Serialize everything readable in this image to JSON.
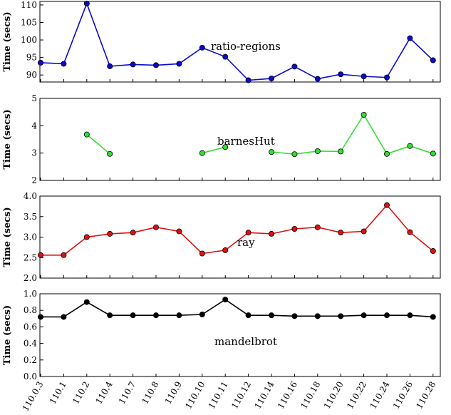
{
  "chart_data": {
    "type": "line",
    "shared_x_categories": [
      "110.0.3",
      "110.1",
      "110.2",
      "110.4",
      "110.7",
      "110.8",
      "110.9",
      "110.10",
      "110.11",
      "110.12",
      "110.14",
      "110.16",
      "110.18",
      "110.20",
      "110.22",
      "110.24",
      "110.26",
      "110.28"
    ],
    "panels": [
      {
        "annotation": "ratio-regions",
        "ylabel": "Time (secs)",
        "ylim": [
          88,
          111
        ],
        "yticks": [
          90,
          95,
          100,
          105,
          110
        ],
        "ytick_labels": [
          "90",
          "95",
          "100",
          "105",
          "110"
        ],
        "color": "#0a0ad2",
        "values": [
          93.5,
          93.2,
          110.4,
          92.5,
          93.0,
          92.8,
          93.2,
          97.8,
          95.2,
          88.5,
          89.0,
          92.4,
          88.9,
          90.2,
          89.6,
          89.3,
          100.5,
          94.2
        ]
      },
      {
        "annotation": "barnesHut",
        "ylabel": "Time (secs)",
        "ylim": [
          2,
          5
        ],
        "yticks": [
          2,
          3,
          4,
          5
        ],
        "ytick_labels": [
          "2",
          "3",
          "4",
          "5"
        ],
        "color": "#33dd33",
        "values": [
          null,
          null,
          3.68,
          2.97,
          null,
          null,
          null,
          3.0,
          3.22,
          null,
          3.04,
          2.96,
          3.07,
          3.06,
          4.4,
          2.97,
          3.26,
          2.98
        ]
      },
      {
        "annotation": "ray",
        "ylabel": "Time (secs)",
        "ylim": [
          2.0,
          4.0
        ],
        "yticks": [
          2.0,
          2.5,
          3.0,
          3.5,
          4.0
        ],
        "ytick_labels": [
          "2.0",
          "2.5",
          "3.0",
          "3.5",
          "4.0"
        ],
        "color": "#dd1111",
        "values": [
          2.56,
          2.56,
          3.0,
          3.08,
          3.11,
          3.24,
          3.14,
          2.6,
          2.68,
          3.11,
          3.08,
          3.2,
          3.24,
          3.11,
          3.14,
          3.78,
          3.12,
          2.66
        ]
      },
      {
        "annotation": "mandelbrot",
        "ylabel": "Time (secs)",
        "ylim": [
          0.0,
          1.0
        ],
        "yticks": [
          0.0,
          0.2,
          0.4,
          0.6,
          0.8,
          1.0
        ],
        "ytick_labels": [
          "0.0",
          "0.2",
          "0.4",
          "0.6",
          "0.8",
          "1.0"
        ],
        "color": "#000000",
        "values": [
          0.72,
          0.72,
          0.9,
          0.74,
          0.74,
          0.74,
          0.74,
          0.75,
          0.93,
          0.74,
          0.74,
          0.73,
          0.73,
          0.73,
          0.74,
          0.74,
          0.74,
          0.72
        ]
      }
    ],
    "grid": false,
    "legend": "none"
  }
}
